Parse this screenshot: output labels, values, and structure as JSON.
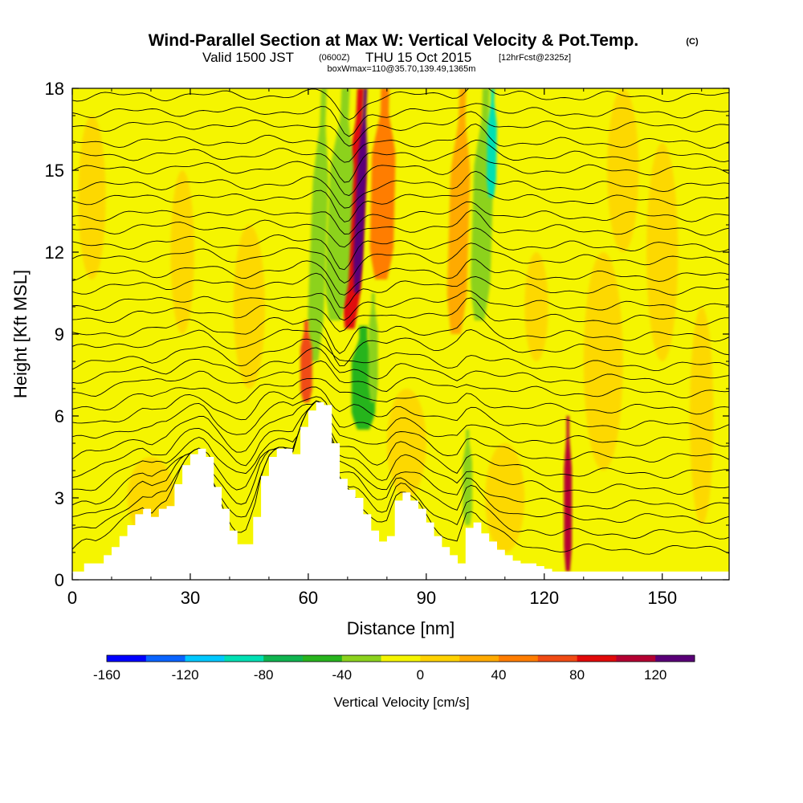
{
  "title": {
    "main": "Wind-Parallel Section at Max W: Vertical Velocity & Pot.Temp.",
    "copyright": "(C)",
    "valid_prefix": "Valid 1500 JST",
    "valid_utc": "(0600Z)",
    "valid_date": "THU 15 Oct 2015",
    "forecast": "[12hrFcst@2325z]",
    "box_info": "boxWmax=110@35.70,139.49,1365m"
  },
  "chart_data": {
    "type": "heatmap",
    "xlabel": "Distance [nm]",
    "ylabel": "Height [Kft MSL]",
    "xlim": [
      0,
      167
    ],
    "ylim": [
      0,
      18
    ],
    "xticks": [
      0,
      30,
      60,
      90,
      120,
      150
    ],
    "yticks": [
      0,
      3,
      6,
      9,
      12,
      15,
      18
    ],
    "colorbar": {
      "label": "Vertical Velocity [cm/s]",
      "ticks": [
        -160,
        -120,
        -80,
        -40,
        0,
        40,
        80,
        120
      ],
      "bins": [
        -160,
        -140,
        -120,
        -100,
        -80,
        -60,
        -40,
        -20,
        0,
        20,
        40,
        60,
        80,
        100,
        120,
        140
      ],
      "colors": [
        "#0000ff",
        "#0a64ff",
        "#00c8ff",
        "#00e0b4",
        "#10b450",
        "#28b41e",
        "#8cd21e",
        "#f5f500",
        "#ffd200",
        "#ffaa00",
        "#ff7d00",
        "#f04b14",
        "#e10a0a",
        "#b40032",
        "#5a0078"
      ]
    },
    "terrain_kft": [
      [
        0,
        0.3
      ],
      [
        3,
        0.6
      ],
      [
        6,
        0.6
      ],
      [
        8,
        0.9
      ],
      [
        10,
        1.2
      ],
      [
        12,
        1.6
      ],
      [
        14,
        2.0
      ],
      [
        16,
        2.4
      ],
      [
        18,
        2.6
      ],
      [
        20,
        2.3
      ],
      [
        22,
        2.6
      ],
      [
        24,
        2.7
      ],
      [
        26,
        3.5
      ],
      [
        28,
        4.2
      ],
      [
        30,
        4.6
      ],
      [
        32,
        4.8
      ],
      [
        34,
        4.5
      ],
      [
        36,
        3.4
      ],
      [
        38,
        2.6
      ],
      [
        40,
        1.8
      ],
      [
        42,
        1.3
      ],
      [
        44,
        1.3
      ],
      [
        46,
        2.3
      ],
      [
        48,
        3.8
      ],
      [
        50,
        4.5
      ],
      [
        52,
        4.8
      ],
      [
        54,
        4.8
      ],
      [
        56,
        4.6
      ],
      [
        58,
        5.6
      ],
      [
        60,
        6.2
      ],
      [
        62,
        6.5
      ],
      [
        64,
        6.4
      ],
      [
        66,
        5.0
      ],
      [
        68,
        3.7
      ],
      [
        70,
        3.3
      ],
      [
        72,
        3.0
      ],
      [
        74,
        2.4
      ],
      [
        76,
        1.8
      ],
      [
        78,
        1.4
      ],
      [
        80,
        1.6
      ],
      [
        82,
        2.9
      ],
      [
        84,
        3.2
      ],
      [
        86,
        2.9
      ],
      [
        88,
        2.6
      ],
      [
        90,
        2.1
      ],
      [
        92,
        1.6
      ],
      [
        94,
        1.2
      ],
      [
        96,
        0.9
      ],
      [
        98,
        0.6
      ],
      [
        100,
        1.9
      ],
      [
        102,
        2.1
      ],
      [
        104,
        1.7
      ],
      [
        106,
        1.4
      ],
      [
        108,
        1.1
      ],
      [
        110,
        0.9
      ],
      [
        112,
        0.7
      ],
      [
        114,
        0.6
      ],
      [
        116,
        0.6
      ],
      [
        118,
        0.5
      ],
      [
        120,
        0.4
      ],
      [
        122,
        0.3
      ],
      [
        124,
        0.3
      ],
      [
        130,
        0.3
      ],
      [
        140,
        0.3
      ],
      [
        150,
        0.3
      ],
      [
        160,
        0.3
      ],
      [
        167,
        0.3
      ]
    ],
    "isentrope_levels_kft": [
      0.9,
      1.5,
      2.1,
      2.6,
      3.2,
      3.8,
      4.4,
      5.0,
      5.6,
      6.2,
      6.8,
      7.3,
      7.8,
      8.4,
      8.9,
      9.5,
      10.0,
      10.6,
      11.1,
      11.7,
      12.2,
      12.8,
      13.3,
      13.9,
      14.4,
      15.0,
      15.5,
      16.0,
      16.6,
      17.1,
      17.7
    ],
    "velocity_features": [
      {
        "x": 70.5,
        "y0": 9.2,
        "y1": 18,
        "slope_nm_per_kft": 0.32,
        "half_width_nm": 2.4,
        "value_cm_s": 90
      },
      {
        "x": 72.3,
        "y0": 10.5,
        "y1": 18,
        "slope_nm_per_kft": 0.3,
        "half_width_nm": 1.2,
        "value_cm_s": 130
      },
      {
        "x": 66.8,
        "y0": 9.5,
        "y1": 18,
        "slope_nm_per_kft": 0.32,
        "half_width_nm": 3.0,
        "value_cm_s": -35
      },
      {
        "x": 61.5,
        "y0": 8.0,
        "y1": 18,
        "slope_nm_per_kft": 0.25,
        "half_width_nm": 2.0,
        "value_cm_s": -40
      },
      {
        "x": 103.5,
        "y0": 9.5,
        "y1": 18,
        "slope_nm_per_kft": 0.2,
        "half_width_nm": 2.5,
        "value_cm_s": -35
      },
      {
        "x": 106.5,
        "y0": 14.0,
        "y1": 18,
        "slope_nm_per_kft": 0.1,
        "half_width_nm": 1.2,
        "value_cm_s": -90
      },
      {
        "x": 97.5,
        "y0": 9.0,
        "y1": 18,
        "slope_nm_per_kft": 0.2,
        "half_width_nm": 2.5,
        "value_cm_s": 35
      },
      {
        "x": 78.5,
        "y0": 11.0,
        "y1": 18,
        "slope_nm_per_kft": 0.15,
        "half_width_nm": 3.0,
        "value_cm_s": 50
      },
      {
        "x": 74.0,
        "y0": 5.5,
        "y1": 9.3,
        "slope_nm_per_kft": 0.0,
        "half_width_nm": 3.0,
        "value_cm_s": -45
      },
      {
        "x": 76.5,
        "y0": 6.5,
        "y1": 10.5,
        "slope_nm_per_kft": 0.0,
        "half_width_nm": 1.2,
        "value_cm_s": -35
      },
      {
        "x": 59.5,
        "y0": 6.5,
        "y1": 9.5,
        "slope_nm_per_kft": 0.0,
        "half_width_nm": 1.5,
        "value_cm_s": 75
      },
      {
        "x": 126.0,
        "y0": 0.3,
        "y1": 6.0,
        "slope_nm_per_kft": 0.0,
        "half_width_nm": 1.0,
        "value_cm_s": 105
      },
      {
        "x": 100.5,
        "y0": 2.0,
        "y1": 5.5,
        "slope_nm_per_kft": 0.0,
        "half_width_nm": 1.2,
        "value_cm_s": -40
      }
    ]
  }
}
